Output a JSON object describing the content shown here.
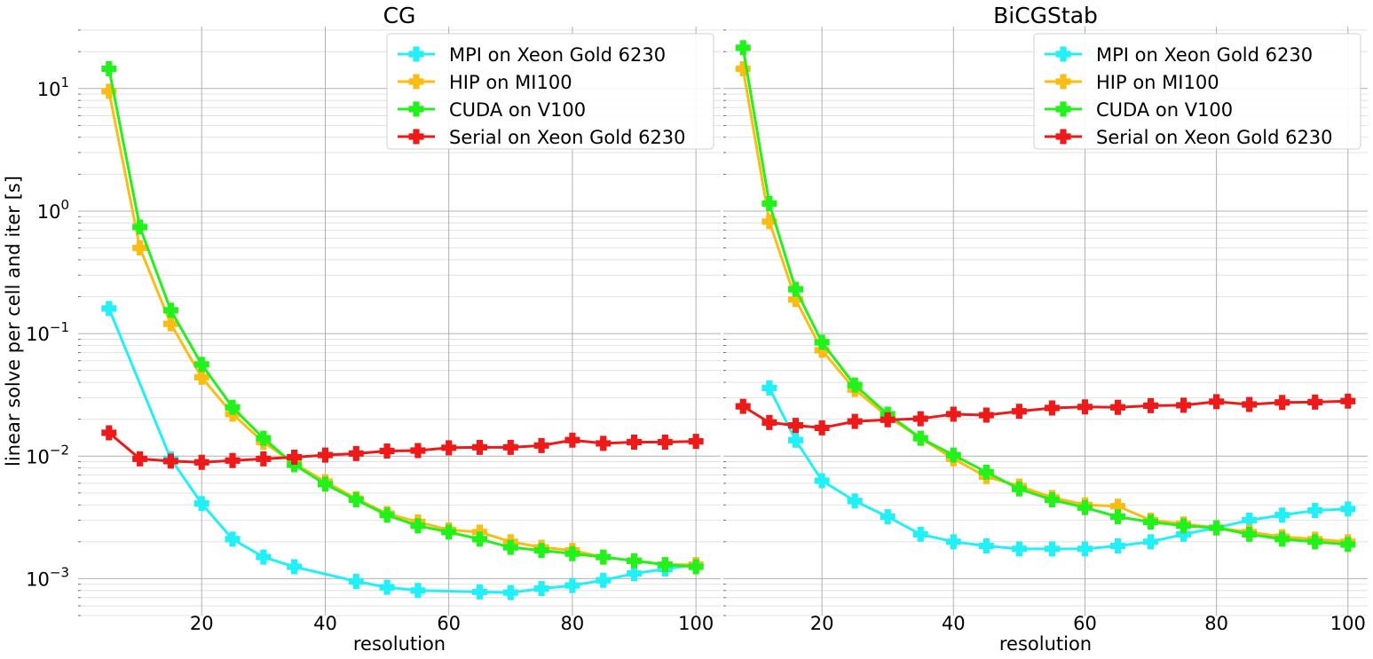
{
  "chart_data": [
    {
      "type": "line",
      "title": "CG",
      "xlabel": "resolution",
      "ylabel": "linear solve per cell and iter [s]",
      "yscale": "log",
      "xlim": [
        0,
        104
      ],
      "ylim": [
        0.0005,
        32
      ],
      "x_ticks": [
        20,
        40,
        60,
        80,
        100
      ],
      "x_tick_labels": [
        "20",
        "40",
        "60",
        "80",
        "100"
      ],
      "y_ticks": [
        0.001,
        0.01,
        0.1,
        1,
        10
      ],
      "y_tick_labels": [
        "10^-3",
        "10^-2",
        "10^-1",
        "10^0",
        "10^1"
      ],
      "grid": true,
      "legend_position": "top-right",
      "series": [
        {
          "name": "MPI on Xeon Gold 6230",
          "color": "#21f0f7",
          "x": [
            5,
            15,
            20,
            25,
            30,
            35,
            45,
            50,
            55,
            65,
            70,
            75,
            80,
            85,
            90,
            95,
            100
          ],
          "y": [
            0.16,
            0.0095,
            0.0041,
            0.0021,
            0.0015,
            0.00125,
            0.00095,
            0.00085,
            0.0008,
            0.00078,
            0.00077,
            0.00083,
            0.00088,
            0.00097,
            0.0011,
            0.0012,
            0.0013
          ]
        },
        {
          "name": "HIP on MI100",
          "color": "#fbbc13",
          "x": [
            5,
            10,
            15,
            20,
            25,
            30,
            35,
            40,
            45,
            50,
            55,
            60,
            65,
            70,
            75,
            80,
            85,
            90,
            95,
            100
          ],
          "y": [
            9.5,
            0.5,
            0.12,
            0.044,
            0.022,
            0.013,
            0.0087,
            0.0062,
            0.0045,
            0.0034,
            0.0029,
            0.0025,
            0.0024,
            0.002,
            0.0018,
            0.0017,
            0.0015,
            0.0014,
            0.0013,
            0.0013
          ]
        },
        {
          "name": "CUDA on V100",
          "color": "#22f21b",
          "x": [
            5,
            10,
            15,
            20,
            25,
            30,
            35,
            40,
            45,
            50,
            55,
            60,
            65,
            70,
            75,
            80,
            85,
            90,
            95,
            100
          ],
          "y": [
            14.5,
            0.74,
            0.155,
            0.056,
            0.025,
            0.014,
            0.0085,
            0.0059,
            0.0044,
            0.0033,
            0.0027,
            0.0024,
            0.0021,
            0.0018,
            0.0017,
            0.0016,
            0.0015,
            0.0014,
            0.0013,
            0.00125
          ]
        },
        {
          "name": "Serial on Xeon Gold 6230",
          "color": "#ee1a1a",
          "x": [
            5,
            10,
            15,
            20,
            25,
            30,
            35,
            40,
            45,
            50,
            55,
            60,
            65,
            70,
            75,
            80,
            85,
            90,
            95,
            100
          ],
          "y": [
            0.0155,
            0.0095,
            0.0091,
            0.0089,
            0.0092,
            0.0095,
            0.0098,
            0.0102,
            0.0105,
            0.011,
            0.0111,
            0.0117,
            0.0118,
            0.0118,
            0.0122,
            0.0135,
            0.0127,
            0.013,
            0.013,
            0.0132
          ]
        }
      ]
    },
    {
      "type": "line",
      "title": "BiCGStab",
      "xlabel": "resolution",
      "ylabel": "",
      "yscale": "log",
      "xlim": [
        5,
        103
      ],
      "ylim": [
        0.0005,
        32
      ],
      "x_ticks": [
        20,
        40,
        60,
        80,
        100
      ],
      "x_tick_labels": [
        "20",
        "40",
        "60",
        "80",
        "100"
      ],
      "grid": true,
      "legend_position": "top-right",
      "series": [
        {
          "name": "MPI on Xeon Gold 6230",
          "color": "#21f0f7",
          "x": [
            12,
            16,
            20,
            25,
            30,
            35,
            40,
            45,
            50,
            55,
            60,
            65,
            70,
            75,
            80,
            85,
            90,
            95,
            100
          ],
          "y": [
            0.036,
            0.0135,
            0.0063,
            0.0043,
            0.0032,
            0.0023,
            0.002,
            0.00185,
            0.00175,
            0.00175,
            0.00175,
            0.00185,
            0.002,
            0.0023,
            0.0026,
            0.003,
            0.0033,
            0.0036,
            0.0037
          ]
        },
        {
          "name": "HIP on MI100",
          "color": "#fbbc13",
          "x": [
            8,
            12,
            16,
            20,
            25,
            30,
            35,
            40,
            45,
            50,
            55,
            60,
            65,
            70,
            75,
            80,
            85,
            90,
            95,
            100
          ],
          "y": [
            14.5,
            0.82,
            0.19,
            0.073,
            0.035,
            0.021,
            0.014,
            0.0095,
            0.0068,
            0.0057,
            0.0046,
            0.004,
            0.0039,
            0.003,
            0.0028,
            0.0026,
            0.0024,
            0.0022,
            0.0021,
            0.002
          ]
        },
        {
          "name": "CUDA on V100",
          "color": "#22f21b",
          "x": [
            8,
            12,
            16,
            20,
            25,
            30,
            35,
            40,
            45,
            50,
            55,
            60,
            65,
            70,
            75,
            80,
            85,
            90,
            95,
            100
          ],
          "y": [
            21.5,
            1.15,
            0.23,
            0.085,
            0.038,
            0.022,
            0.014,
            0.0102,
            0.0074,
            0.0054,
            0.0044,
            0.0038,
            0.0032,
            0.0029,
            0.0027,
            0.0026,
            0.0023,
            0.0021,
            0.002,
            0.0019
          ]
        },
        {
          "name": "Serial on Xeon Gold 6230",
          "color": "#ee1a1a",
          "x": [
            8,
            12,
            16,
            20,
            25,
            30,
            35,
            40,
            45,
            50,
            55,
            60,
            65,
            70,
            75,
            80,
            85,
            90,
            95,
            100
          ],
          "y": [
            0.0255,
            0.0188,
            0.0178,
            0.017,
            0.0192,
            0.0198,
            0.0202,
            0.022,
            0.0216,
            0.0232,
            0.0247,
            0.0252,
            0.025,
            0.0258,
            0.026,
            0.0278,
            0.0264,
            0.0274,
            0.0276,
            0.0281
          ]
        }
      ]
    }
  ]
}
